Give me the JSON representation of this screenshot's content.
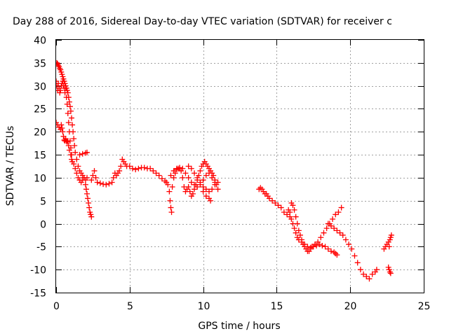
{
  "chart_data": {
    "type": "scatter",
    "title": "Day 288 of 2016, Sidereal Day-to-day VTEC variation (SDTVAR) for receiver c",
    "xlabel": "GPS time / hours",
    "ylabel": "SDTVAR / TECUs",
    "xlim": [
      0,
      25
    ],
    "ylim": [
      -15,
      40
    ],
    "x_ticks": [
      "0",
      "5",
      "10",
      "15",
      "20",
      "25"
    ],
    "y_ticks": [
      "40",
      "35",
      "30",
      "25",
      "20",
      "15",
      "10",
      "5",
      "0",
      "-5",
      "-10",
      "-15"
    ],
    "grid": true,
    "marker_color": "#ff0000",
    "marker": "plus",
    "series": [
      {
        "points": [
          [
            0.0,
            22.0
          ],
          [
            0.1,
            21.5
          ],
          [
            0.2,
            21.0
          ],
          [
            0.3,
            20.5
          ],
          [
            0.35,
            21.5
          ],
          [
            0.4,
            20.8
          ],
          [
            0.45,
            20.0
          ],
          [
            0.5,
            19.0
          ],
          [
            0.55,
            18.2
          ],
          [
            0.6,
            18.0
          ],
          [
            0.65,
            18.5
          ],
          [
            0.7,
            18.0
          ],
          [
            0.75,
            17.8
          ],
          [
            0.8,
            18.0
          ],
          [
            0.85,
            17.0
          ],
          [
            0.9,
            16.0
          ],
          [
            1.0,
            15.0
          ],
          [
            1.05,
            14.0
          ],
          [
            1.1,
            13.5
          ],
          [
            1.2,
            13.0
          ],
          [
            1.3,
            12.0
          ],
          [
            1.4,
            11.0
          ],
          [
            1.5,
            10.0
          ],
          [
            1.6,
            9.5
          ],
          [
            1.7,
            9.0
          ],
          [
            1.8,
            9.5
          ],
          [
            1.9,
            10.0
          ],
          [
            2.0,
            8.5
          ],
          [
            2.05,
            7.5
          ],
          [
            2.1,
            6.5
          ],
          [
            2.15,
            5.5
          ],
          [
            2.2,
            4.5
          ],
          [
            2.25,
            3.5
          ],
          [
            2.3,
            2.5
          ],
          [
            2.35,
            2.0
          ],
          [
            2.4,
            1.5
          ]
        ]
      },
      {
        "points": [
          [
            0.0,
            31.0
          ],
          [
            0.05,
            30.0
          ],
          [
            0.1,
            29.0
          ],
          [
            0.15,
            30.5
          ],
          [
            0.2,
            29.5
          ],
          [
            0.25,
            28.5
          ],
          [
            0.3,
            29.0
          ],
          [
            0.35,
            30.0
          ],
          [
            0.4,
            30.5
          ],
          [
            0.45,
            31.0
          ],
          [
            0.5,
            30.0
          ],
          [
            0.55,
            29.5
          ],
          [
            0.6,
            28.5
          ],
          [
            0.65,
            29.5
          ],
          [
            0.7,
            27.5
          ],
          [
            0.75,
            26.0
          ],
          [
            0.8,
            24.0
          ],
          [
            0.85,
            22.0
          ],
          [
            0.9,
            20.0
          ],
          [
            0.95,
            18.0
          ],
          [
            1.0,
            16.5
          ],
          [
            1.05,
            15.0
          ]
        ]
      },
      {
        "points": [
          [
            0.05,
            35.0
          ],
          [
            0.1,
            34.8
          ],
          [
            0.15,
            34.5
          ],
          [
            0.2,
            34.2
          ],
          [
            0.25,
            33.8
          ],
          [
            0.3,
            33.5
          ],
          [
            0.35,
            33.0
          ],
          [
            0.4,
            32.5
          ],
          [
            0.45,
            32.0
          ],
          [
            0.5,
            31.5
          ],
          [
            0.55,
            31.0
          ],
          [
            0.6,
            30.5
          ],
          [
            0.65,
            30.0
          ],
          [
            0.7,
            29.5
          ],
          [
            0.75,
            29.0
          ],
          [
            0.8,
            28.5
          ],
          [
            0.85,
            27.5
          ],
          [
            0.9,
            26.5
          ],
          [
            0.95,
            25.5
          ],
          [
            1.0,
            24.5
          ],
          [
            1.05,
            23.0
          ],
          [
            1.1,
            21.5
          ],
          [
            1.15,
            20.0
          ],
          [
            1.2,
            18.5
          ],
          [
            1.25,
            17.0
          ],
          [
            1.3,
            15.5
          ],
          [
            1.4,
            14.0
          ],
          [
            1.5,
            12.5
          ],
          [
            1.6,
            11.5
          ],
          [
            1.7,
            11.0
          ],
          [
            1.8,
            10.5
          ],
          [
            1.9,
            10.0
          ],
          [
            2.0,
            9.5
          ],
          [
            2.1,
            10.0
          ],
          [
            1.6,
            15.0
          ],
          [
            1.8,
            15.2
          ],
          [
            2.0,
            15.4
          ],
          [
            2.1,
            15.5
          ]
        ]
      },
      {
        "points": [
          [
            2.4,
            9.5
          ],
          [
            2.5,
            10.5
          ],
          [
            2.6,
            11.5
          ],
          [
            2.7,
            10.0
          ],
          [
            2.8,
            9.0
          ],
          [
            3.0,
            8.8
          ],
          [
            3.2,
            8.6
          ],
          [
            3.4,
            8.5
          ],
          [
            3.6,
            8.7
          ],
          [
            3.8,
            9.0
          ],
          [
            3.9,
            10.0
          ],
          [
            4.0,
            11.0
          ],
          [
            4.1,
            10.5
          ],
          [
            4.2,
            11.0
          ],
          [
            4.3,
            11.5
          ],
          [
            4.4,
            12.5
          ],
          [
            4.5,
            14.0
          ],
          [
            4.6,
            13.5
          ],
          [
            4.7,
            13.0
          ],
          [
            4.8,
            12.5
          ],
          [
            5.0,
            12.5
          ],
          [
            5.2,
            12.0
          ],
          [
            5.4,
            11.8
          ],
          [
            5.6,
            12.0
          ],
          [
            5.8,
            12.2
          ],
          [
            6.0,
            12.2
          ],
          [
            6.2,
            12.0
          ],
          [
            6.4,
            12.0
          ],
          [
            6.6,
            11.5
          ],
          [
            6.8,
            11.0
          ],
          [
            7.0,
            10.5
          ],
          [
            7.2,
            9.8
          ],
          [
            7.4,
            9.3
          ],
          [
            7.5,
            9.0
          ],
          [
            7.6,
            8.5
          ],
          [
            7.7,
            7.0
          ],
          [
            7.75,
            5.0
          ],
          [
            7.8,
            3.5
          ],
          [
            7.85,
            2.5
          ],
          [
            7.9,
            8.0
          ],
          [
            8.0,
            10.0
          ],
          [
            8.1,
            11.0
          ],
          [
            8.2,
            11.8
          ],
          [
            8.3,
            12.0
          ],
          [
            8.4,
            12.0
          ],
          [
            8.5,
            11.5
          ],
          [
            8.6,
            10.0
          ],
          [
            8.7,
            8.0
          ],
          [
            8.8,
            7.0
          ],
          [
            8.9,
            7.5
          ],
          [
            9.0,
            8.0
          ],
          [
            9.1,
            7.0
          ],
          [
            9.2,
            6.0
          ],
          [
            9.3,
            6.5
          ],
          [
            9.4,
            7.5
          ],
          [
            9.5,
            8.5
          ],
          [
            9.6,
            9.5
          ],
          [
            9.7,
            10.5
          ],
          [
            9.8,
            11.5
          ],
          [
            9.9,
            12.5
          ],
          [
            10.0,
            13.0
          ],
          [
            10.1,
            13.5
          ],
          [
            10.2,
            13.0
          ],
          [
            10.3,
            12.5
          ],
          [
            10.4,
            12.0
          ],
          [
            10.5,
            11.5
          ],
          [
            10.6,
            11.0
          ],
          [
            10.7,
            10.5
          ],
          [
            10.8,
            9.5
          ],
          [
            10.9,
            8.5
          ],
          [
            11.0,
            7.5
          ]
        ]
      },
      {
        "points": [
          [
            7.8,
            10.5
          ],
          [
            8.0,
            11.5
          ],
          [
            8.2,
            12.0
          ],
          [
            8.4,
            12.2
          ],
          [
            8.6,
            12.0
          ],
          [
            8.8,
            11.0
          ],
          [
            9.0,
            10.0
          ],
          [
            9.2,
            9.0
          ],
          [
            9.4,
            8.5
          ],
          [
            9.6,
            8.0
          ],
          [
            9.8,
            8.5
          ],
          [
            10.0,
            9.5
          ],
          [
            10.2,
            10.5
          ],
          [
            10.4,
            11.0
          ],
          [
            10.6,
            10.0
          ],
          [
            10.8,
            9.0
          ],
          [
            10.0,
            7.0
          ],
          [
            10.2,
            6.0
          ],
          [
            10.4,
            5.5
          ],
          [
            10.5,
            5.0
          ],
          [
            9.0,
            12.5
          ],
          [
            9.2,
            12.0
          ],
          [
            9.4,
            11.0
          ],
          [
            9.6,
            10.0
          ],
          [
            9.8,
            9.0
          ],
          [
            10.0,
            8.0
          ],
          [
            10.2,
            7.5
          ],
          [
            10.4,
            7.0
          ],
          [
            10.6,
            7.5
          ],
          [
            10.8,
            8.5
          ],
          [
            11.0,
            9.0
          ]
        ]
      },
      {
        "points": [
          [
            13.8,
            7.5
          ],
          [
            13.9,
            7.8
          ],
          [
            14.0,
            7.5
          ],
          [
            14.1,
            7.0
          ],
          [
            14.2,
            6.5
          ],
          [
            14.3,
            6.5
          ],
          [
            14.4,
            6.0
          ],
          [
            14.5,
            5.5
          ],
          [
            14.7,
            5.0
          ],
          [
            14.9,
            4.5
          ],
          [
            15.1,
            4.0
          ],
          [
            15.3,
            3.5
          ],
          [
            15.5,
            2.5
          ],
          [
            15.7,
            2.0
          ],
          [
            15.9,
            1.5
          ],
          [
            16.0,
            1.0
          ],
          [
            16.1,
            0.0
          ],
          [
            16.2,
            -1.0
          ],
          [
            16.3,
            -2.0
          ],
          [
            16.4,
            -3.0
          ],
          [
            16.5,
            -3.5
          ],
          [
            16.7,
            -4.0
          ],
          [
            16.9,
            -4.5
          ],
          [
            17.1,
            -5.0
          ],
          [
            17.3,
            -5.2
          ],
          [
            17.5,
            -5.0
          ],
          [
            17.7,
            -4.8
          ],
          [
            17.9,
            -4.5
          ],
          [
            18.1,
            -4.8
          ],
          [
            18.3,
            -5.0
          ],
          [
            18.5,
            -5.5
          ],
          [
            18.7,
            -6.0
          ],
          [
            18.9,
            -6.2
          ],
          [
            19.0,
            -6.5
          ],
          [
            19.1,
            -6.8
          ]
        ]
      },
      {
        "points": [
          [
            15.8,
            3.0
          ],
          [
            15.9,
            2.5
          ],
          [
            16.0,
            4.5
          ],
          [
            16.1,
            4.0
          ],
          [
            16.2,
            3.0
          ],
          [
            16.3,
            1.5
          ],
          [
            16.4,
            0.0
          ],
          [
            16.5,
            -1.5
          ],
          [
            16.6,
            -2.5
          ],
          [
            16.7,
            -3.5
          ],
          [
            16.8,
            -4.5
          ],
          [
            16.9,
            -5.0
          ],
          [
            17.0,
            -5.5
          ],
          [
            17.1,
            -6.0
          ],
          [
            17.2,
            -6.0
          ],
          [
            17.3,
            -5.5
          ],
          [
            17.4,
            -5.0
          ],
          [
            17.6,
            -4.5
          ],
          [
            17.8,
            -4.0
          ],
          [
            18.0,
            -3.0
          ],
          [
            18.2,
            -2.0
          ],
          [
            18.4,
            -1.0
          ],
          [
            18.6,
            0.0
          ],
          [
            18.8,
            1.0
          ],
          [
            19.0,
            2.0
          ],
          [
            19.2,
            2.5
          ],
          [
            19.4,
            3.5
          ]
        ]
      },
      {
        "points": [
          [
            18.5,
            0.0
          ],
          [
            18.7,
            -0.5
          ],
          [
            18.9,
            -1.0
          ],
          [
            19.1,
            -1.5
          ],
          [
            19.3,
            -2.0
          ],
          [
            19.5,
            -2.5
          ],
          [
            19.7,
            -3.5
          ],
          [
            19.9,
            -4.5
          ],
          [
            20.1,
            -5.5
          ],
          [
            20.3,
            -7.0
          ],
          [
            20.5,
            -8.5
          ],
          [
            20.7,
            -10.0
          ],
          [
            20.9,
            -11.0
          ],
          [
            21.1,
            -11.5
          ],
          [
            21.3,
            -12.0
          ],
          [
            21.5,
            -11.0
          ],
          [
            21.7,
            -10.5
          ],
          [
            21.8,
            -10.0
          ]
        ]
      },
      {
        "points": [
          [
            22.3,
            -5.5
          ],
          [
            22.4,
            -5.0
          ],
          [
            22.5,
            -4.5
          ],
          [
            22.6,
            -4.0
          ],
          [
            22.65,
            -5.0
          ],
          [
            22.7,
            -3.5
          ],
          [
            22.75,
            -3.0
          ],
          [
            22.8,
            -2.5
          ],
          [
            22.6,
            -9.5
          ],
          [
            22.65,
            -10.0
          ],
          [
            22.7,
            -10.5
          ],
          [
            22.75,
            -10.8
          ]
        ]
      }
    ]
  }
}
